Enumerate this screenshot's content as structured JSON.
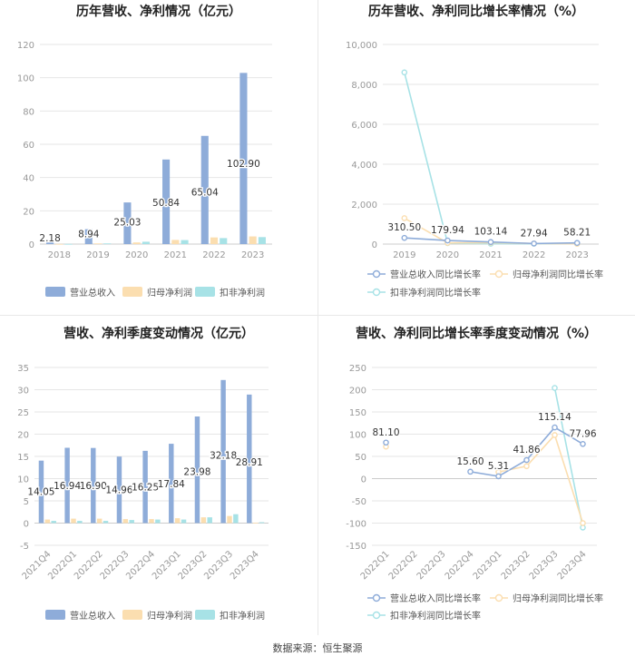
{
  "colors": {
    "revenue": "#8eacd9",
    "net_profit": "#fbdeb0",
    "deducted_profit": "#a7e2e6",
    "grid": "#e6e6e6",
    "axis_text": "#999999",
    "title_text": "#222222",
    "label_text": "#333333"
  },
  "source_text": "数据来源：恒生聚源",
  "chart_data": [
    {
      "id": "annual",
      "type": "bar",
      "title": "历年营收、净利情况（亿元）",
      "categories": [
        "2018",
        "2019",
        "2020",
        "2021",
        "2022",
        "2023"
      ],
      "ylim": [
        0,
        120
      ],
      "yticks": [
        "0",
        "20",
        "40",
        "60",
        "80",
        "100",
        "120"
      ],
      "series": [
        {
          "name": "营业总收入",
          "values": [
            2.18,
            8.94,
            25.03,
            50.84,
            65.04,
            102.9
          ],
          "labels": [
            "2.18",
            "8.94",
            "25.03",
            "50.84",
            "65.04",
            "102.90"
          ]
        },
        {
          "name": "归母净利润",
          "values": [
            0.1,
            0.4,
            1.0,
            2.5,
            4.0,
            4.6
          ]
        },
        {
          "name": "扣非净利润",
          "values": [
            0.1,
            0.4,
            1.4,
            2.4,
            3.6,
            4.2
          ]
        }
      ],
      "legend_position": "bottom",
      "grid": true
    },
    {
      "id": "annual_growth",
      "type": "line",
      "title": "历年营收、净利同比增长率情况（%）",
      "categories": [
        "2019",
        "2020",
        "2021",
        "2022",
        "2023"
      ],
      "ylim": [
        0,
        10000
      ],
      "yticks": [
        "0",
        "2,000",
        "4,000",
        "6,000",
        "8,000",
        "10,000"
      ],
      "series": [
        {
          "name": "营业总收入同比增长率",
          "values": [
            310.5,
            179.94,
            103.14,
            27.94,
            58.21
          ],
          "labels": [
            "310.50",
            "179.94",
            "103.14",
            "27.94",
            "58.21"
          ]
        },
        {
          "name": "归母净利润同比增长率",
          "values": [
            1300,
            60,
            70,
            30,
            15
          ]
        },
        {
          "name": "扣非净利润同比增长率",
          "values": [
            8600,
            50,
            20,
            20,
            20
          ]
        }
      ],
      "legend_position": "bottom",
      "grid": true
    },
    {
      "id": "quarterly",
      "type": "bar",
      "title": "营收、净利季度变动情况（亿元）",
      "categories": [
        "2021Q4",
        "2022Q1",
        "2022Q2",
        "2022Q3",
        "2022Q4",
        "2023Q1",
        "2023Q2",
        "2023Q3",
        "2023Q4"
      ],
      "ylim": [
        -5,
        35
      ],
      "yticks": [
        "-5",
        "0",
        "5",
        "10",
        "15",
        "20",
        "25",
        "30",
        "35"
      ],
      "series": [
        {
          "name": "营业总收入",
          "values": [
            14.05,
            16.94,
            16.9,
            14.96,
            16.25,
            17.84,
            23.98,
            32.18,
            28.91
          ],
          "labels": [
            "14.05",
            "16.94",
            "16.90",
            "14.96",
            "16.25",
            "17.84",
            "23.98",
            "32.18",
            "28.91"
          ]
        },
        {
          "name": "归母净利润",
          "values": [
            0.8,
            1.0,
            1.0,
            0.9,
            0.9,
            1.1,
            1.3,
            1.6,
            0.1
          ]
        },
        {
          "name": "扣非净利润",
          "values": [
            0.5,
            0.5,
            0.5,
            0.7,
            0.8,
            0.8,
            1.3,
            2.0,
            0.2
          ]
        }
      ],
      "legend_position": "bottom",
      "grid": true
    },
    {
      "id": "quarterly_growth",
      "type": "line",
      "title": "营收、净利同比增长率季度变动情况（%）",
      "categories": [
        "2022Q1",
        "2022Q2",
        "2022Q3",
        "2022Q4",
        "2023Q1",
        "2023Q2",
        "2023Q3",
        "2023Q4"
      ],
      "ylim": [
        -150,
        250
      ],
      "yticks": [
        "-150",
        "-100",
        "-50",
        "0",
        "50",
        "100",
        "150",
        "200",
        "250"
      ],
      "series": [
        {
          "name": "营业总收入同比增长率",
          "values": [
            81.1,
            null,
            null,
            15.6,
            5.31,
            41.86,
            115.14,
            77.96
          ],
          "labels": [
            "81.10",
            null,
            null,
            "15.60",
            "5.31",
            "41.86",
            "115.14",
            "77.96"
          ]
        },
        {
          "name": "归母净利润同比增长率",
          "values": [
            72,
            null,
            null,
            null,
            15,
            28,
            98,
            -100
          ]
        },
        {
          "name": "扣非净利润同比增长率",
          "values": [
            null,
            null,
            null,
            null,
            null,
            null,
            204,
            -110
          ]
        }
      ],
      "legend_position": "bottom",
      "grid": true
    }
  ]
}
